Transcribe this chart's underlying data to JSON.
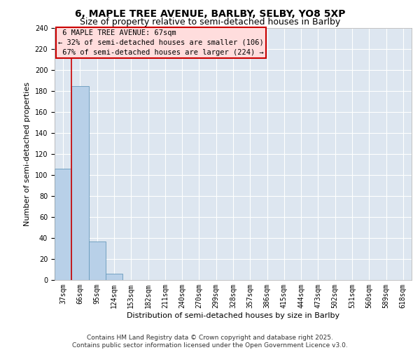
{
  "title": "6, MAPLE TREE AVENUE, BARLBY, SELBY, YO8 5XP",
  "subtitle": "Size of property relative to semi-detached houses in Barlby",
  "xlabel": "Distribution of semi-detached houses by size in Barlby",
  "ylabel": "Number of semi-detached properties",
  "footer_line1": "Contains HM Land Registry data © Crown copyright and database right 2025.",
  "footer_line2": "Contains public sector information licensed under the Open Government Licence v3.0.",
  "bin_labels": [
    "37sqm",
    "66sqm",
    "95sqm",
    "124sqm",
    "153sqm",
    "182sqm",
    "211sqm",
    "240sqm",
    "270sqm",
    "299sqm",
    "328sqm",
    "357sqm",
    "386sqm",
    "415sqm",
    "444sqm",
    "473sqm",
    "502sqm",
    "531sqm",
    "560sqm",
    "589sqm",
    "618sqm"
  ],
  "bar_values": [
    106,
    185,
    37,
    6,
    0,
    0,
    0,
    0,
    0,
    0,
    0,
    0,
    0,
    0,
    0,
    0,
    0,
    0,
    0,
    0,
    0
  ],
  "bar_color": "#b8d0e8",
  "bar_edge_color": "#6699bb",
  "background_color": "#dde6f0",
  "grid_color": "#ffffff",
  "ylim": [
    0,
    240
  ],
  "yticks": [
    0,
    20,
    40,
    60,
    80,
    100,
    120,
    140,
    160,
    180,
    200,
    220,
    240
  ],
  "property_label": "6 MAPLE TREE AVENUE: 67sqm",
  "pct_smaller": 32,
  "count_smaller": 106,
  "pct_larger": 67,
  "count_larger": 224,
  "vline_color": "#cc0000",
  "vline_x": 0.5,
  "annotation_box_color": "#ffdddd",
  "annotation_border_color": "#cc0000",
  "title_fontsize": 10,
  "subtitle_fontsize": 9,
  "axis_label_fontsize": 8,
  "tick_fontsize": 7,
  "annotation_fontsize": 7.5,
  "footer_fontsize": 6.5
}
